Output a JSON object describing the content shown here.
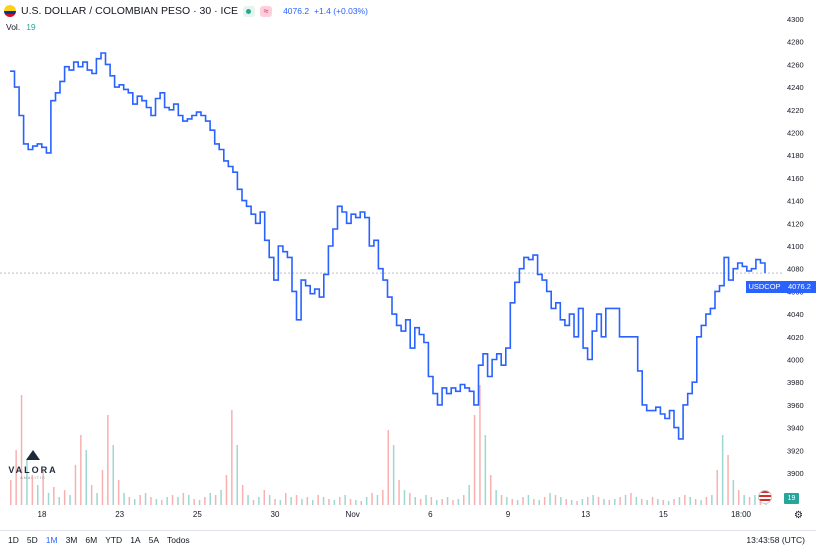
{
  "header": {
    "title": "U.S. DOLLAR / COLOMBIAN PESO · 30 · ICE",
    "price": "4076.2",
    "change": "+1.4 (+0.03%)",
    "vol_label": "Vol.",
    "vol_value": "19",
    "flag_icon": "colombia-flag-icon",
    "status_icon": "market-open-icon",
    "wave_icon": "wave-icon"
  },
  "price_tag": {
    "symbol": "USDCOP",
    "value": "4076.2",
    "color": "#2962ff"
  },
  "volume_tag": {
    "value": "19",
    "color": "#26a69a"
  },
  "ranges": [
    {
      "label": "1D",
      "active": false
    },
    {
      "label": "5D",
      "active": false
    },
    {
      "label": "1M",
      "active": true
    },
    {
      "label": "3M",
      "active": false
    },
    {
      "label": "6M",
      "active": false
    },
    {
      "label": "YTD",
      "active": false
    },
    {
      "label": "1A",
      "active": false
    },
    {
      "label": "5A",
      "active": false
    },
    {
      "label": "Todos",
      "active": false
    }
  ],
  "clock": "13:43:58 (UTC)",
  "logo": {
    "name": "VALORA",
    "sub": "ANALITIK"
  },
  "colors": {
    "line": "#2962ff",
    "up": "#26a69a",
    "down": "#ef5350",
    "grid": "#f0f3fa"
  },
  "chart_data": {
    "type": "line",
    "y_ticks": [
      3900,
      3920,
      3940,
      3960,
      3980,
      4000,
      4020,
      4040,
      4060,
      4080,
      4100,
      4120,
      4140,
      4160,
      4180,
      4200,
      4220,
      4240,
      4260,
      4280,
      4300
    ],
    "ylim": [
      3900,
      4300
    ],
    "x_ticks": [
      "18",
      "23",
      "25",
      "30",
      "Nov",
      "6",
      "9",
      "13",
      "15",
      "18:00"
    ],
    "last_price": 4076.2,
    "series": [
      {
        "values": [
          4254,
          4240,
          4215,
          4190,
          4185,
          4188,
          4190,
          4187,
          4182,
          4228,
          4235,
          4245,
          4258,
          4255,
          4262,
          4258,
          4262,
          4255,
          4252,
          4265,
          4270,
          4260,
          4250,
          4240,
          4242,
          4238,
          4235,
          4225,
          4232,
          4228,
          4222,
          4215,
          4230,
          4235,
          4222,
          4220,
          4225,
          4215,
          4210,
          4212,
          4215,
          4218,
          4215,
          4210,
          4202,
          4190,
          4185,
          4175,
          4170,
          4165,
          4150,
          4140,
          4135,
          4128,
          4120,
          4130,
          4105,
          4090,
          4070,
          4100,
          4095,
          4090,
          4060,
          4035,
          4070,
          4065,
          4058,
          4062,
          4055,
          4075,
          4100,
          4115,
          4135,
          4130,
          4120,
          4128,
          4125,
          4130,
          4125,
          4100,
          4105,
          4080,
          4070,
          4055,
          4040,
          4030,
          4025,
          4035,
          4010,
          4028,
          4022,
          4015,
          3985,
          3970,
          3960,
          3975,
          3970,
          3975,
          3972,
          3978,
          3975,
          3972,
          3960,
          3995,
          4005,
          3985,
          4000,
          4005,
          3995,
          4010,
          4050,
          4068,
          4080,
          4090,
          4088,
          4092,
          4075,
          4070,
          4060,
          4045,
          4050,
          4035,
          4030,
          4040,
          4020,
          4045,
          4010,
          4000,
          4025,
          4040,
          4020,
          4045,
          4045,
          4045,
          4020,
          4020,
          4020,
          4020,
          3990,
          3960,
          3955,
          3955,
          3958,
          3952,
          3948,
          3955,
          3940,
          3930,
          3960,
          3970,
          3980,
          4020,
          4030,
          4040,
          4045,
          4060,
          4065,
          4090,
          4070,
          4080,
          4085,
          4082,
          4078,
          4080,
          4088,
          4085,
          4076.2
        ]
      }
    ],
    "volume": [
      {
        "v": 25,
        "up": false
      },
      {
        "v": 55,
        "up": false
      },
      {
        "v": 110,
        "up": false
      },
      {
        "v": 45,
        "up": true
      },
      {
        "v": 30,
        "up": false
      },
      {
        "v": 20,
        "up": true
      },
      {
        "v": 35,
        "up": false
      },
      {
        "v": 12,
        "up": true
      },
      {
        "v": 18,
        "up": false
      },
      {
        "v": 8,
        "up": true
      },
      {
        "v": 15,
        "up": false
      },
      {
        "v": 10,
        "up": true
      },
      {
        "v": 40,
        "up": false
      },
      {
        "v": 70,
        "up": false
      },
      {
        "v": 55,
        "up": true
      },
      {
        "v": 20,
        "up": false
      },
      {
        "v": 12,
        "up": true
      },
      {
        "v": 35,
        "up": false
      },
      {
        "v": 90,
        "up": false
      },
      {
        "v": 60,
        "up": true
      },
      {
        "v": 25,
        "up": false
      },
      {
        "v": 12,
        "up": true
      },
      {
        "v": 8,
        "up": false
      },
      {
        "v": 6,
        "up": true
      },
      {
        "v": 10,
        "up": false
      },
      {
        "v": 12,
        "up": true
      },
      {
        "v": 8,
        "up": false
      },
      {
        "v": 6,
        "up": true
      },
      {
        "v": 5,
        "up": false
      },
      {
        "v": 8,
        "up": true
      },
      {
        "v": 10,
        "up": false
      },
      {
        "v": 8,
        "up": true
      },
      {
        "v": 12,
        "up": false
      },
      {
        "v": 10,
        "up": true
      },
      {
        "v": 6,
        "up": false
      },
      {
        "v": 5,
        "up": true
      },
      {
        "v": 8,
        "up": false
      },
      {
        "v": 12,
        "up": true
      },
      {
        "v": 10,
        "up": false
      },
      {
        "v": 15,
        "up": true
      },
      {
        "v": 30,
        "up": false
      },
      {
        "v": 95,
        "up": false
      },
      {
        "v": 60,
        "up": true
      },
      {
        "v": 20,
        "up": false
      },
      {
        "v": 10,
        "up": true
      },
      {
        "v": 5,
        "up": false
      },
      {
        "v": 8,
        "up": true
      },
      {
        "v": 15,
        "up": false
      },
      {
        "v": 10,
        "up": true
      },
      {
        "v": 6,
        "up": false
      },
      {
        "v": 5,
        "up": true
      },
      {
        "v": 12,
        "up": false
      },
      {
        "v": 8,
        "up": true
      },
      {
        "v": 10,
        "up": false
      },
      {
        "v": 6,
        "up": true
      },
      {
        "v": 8,
        "up": false
      },
      {
        "v": 5,
        "up": true
      },
      {
        "v": 10,
        "up": false
      },
      {
        "v": 8,
        "up": true
      },
      {
        "v": 6,
        "up": false
      },
      {
        "v": 5,
        "up": true
      },
      {
        "v": 8,
        "up": false
      },
      {
        "v": 10,
        "up": true
      },
      {
        "v": 6,
        "up": false
      },
      {
        "v": 5,
        "up": true
      },
      {
        "v": 4,
        "up": false
      },
      {
        "v": 8,
        "up": true
      },
      {
        "v": 12,
        "up": false
      },
      {
        "v": 10,
        "up": true
      },
      {
        "v": 15,
        "up": false
      },
      {
        "v": 75,
        "up": false
      },
      {
        "v": 60,
        "up": true
      },
      {
        "v": 25,
        "up": false
      },
      {
        "v": 15,
        "up": true
      },
      {
        "v": 12,
        "up": false
      },
      {
        "v": 8,
        "up": true
      },
      {
        "v": 6,
        "up": false
      },
      {
        "v": 10,
        "up": true
      },
      {
        "v": 8,
        "up": false
      },
      {
        "v": 5,
        "up": true
      },
      {
        "v": 6,
        "up": false
      },
      {
        "v": 8,
        "up": true
      },
      {
        "v": 5,
        "up": false
      },
      {
        "v": 6,
        "up": true
      },
      {
        "v": 10,
        "up": false
      },
      {
        "v": 20,
        "up": true
      },
      {
        "v": 90,
        "up": false
      },
      {
        "v": 120,
        "up": false
      },
      {
        "v": 70,
        "up": true
      },
      {
        "v": 30,
        "up": false
      },
      {
        "v": 15,
        "up": true
      },
      {
        "v": 10,
        "up": false
      },
      {
        "v": 8,
        "up": true
      },
      {
        "v": 6,
        "up": false
      },
      {
        "v": 5,
        "up": true
      },
      {
        "v": 8,
        "up": false
      },
      {
        "v": 10,
        "up": true
      },
      {
        "v": 6,
        "up": false
      },
      {
        "v": 5,
        "up": true
      },
      {
        "v": 8,
        "up": false
      },
      {
        "v": 12,
        "up": true
      },
      {
        "v": 10,
        "up": false
      },
      {
        "v": 8,
        "up": true
      },
      {
        "v": 6,
        "up": false
      },
      {
        "v": 5,
        "up": true
      },
      {
        "v": 4,
        "up": false
      },
      {
        "v": 6,
        "up": true
      },
      {
        "v": 8,
        "up": false
      },
      {
        "v": 10,
        "up": true
      },
      {
        "v": 8,
        "up": false
      },
      {
        "v": 6,
        "up": true
      },
      {
        "v": 5,
        "up": false
      },
      {
        "v": 6,
        "up": true
      },
      {
        "v": 8,
        "up": false
      },
      {
        "v": 10,
        "up": true
      },
      {
        "v": 12,
        "up": false
      },
      {
        "v": 8,
        "up": true
      },
      {
        "v": 6,
        "up": false
      },
      {
        "v": 5,
        "up": true
      },
      {
        "v": 8,
        "up": false
      },
      {
        "v": 6,
        "up": true
      },
      {
        "v": 5,
        "up": false
      },
      {
        "v": 4,
        "up": true
      },
      {
        "v": 6,
        "up": false
      },
      {
        "v": 8,
        "up": true
      },
      {
        "v": 10,
        "up": false
      },
      {
        "v": 8,
        "up": true
      },
      {
        "v": 6,
        "up": false
      },
      {
        "v": 5,
        "up": true
      },
      {
        "v": 8,
        "up": false
      },
      {
        "v": 10,
        "up": true
      },
      {
        "v": 35,
        "up": false
      },
      {
        "v": 70,
        "up": true
      },
      {
        "v": 50,
        "up": false
      },
      {
        "v": 25,
        "up": true
      },
      {
        "v": 15,
        "up": false
      },
      {
        "v": 10,
        "up": true
      },
      {
        "v": 8,
        "up": false
      },
      {
        "v": 10,
        "up": true
      },
      {
        "v": 12,
        "up": false
      },
      {
        "v": 8,
        "up": true
      }
    ]
  }
}
